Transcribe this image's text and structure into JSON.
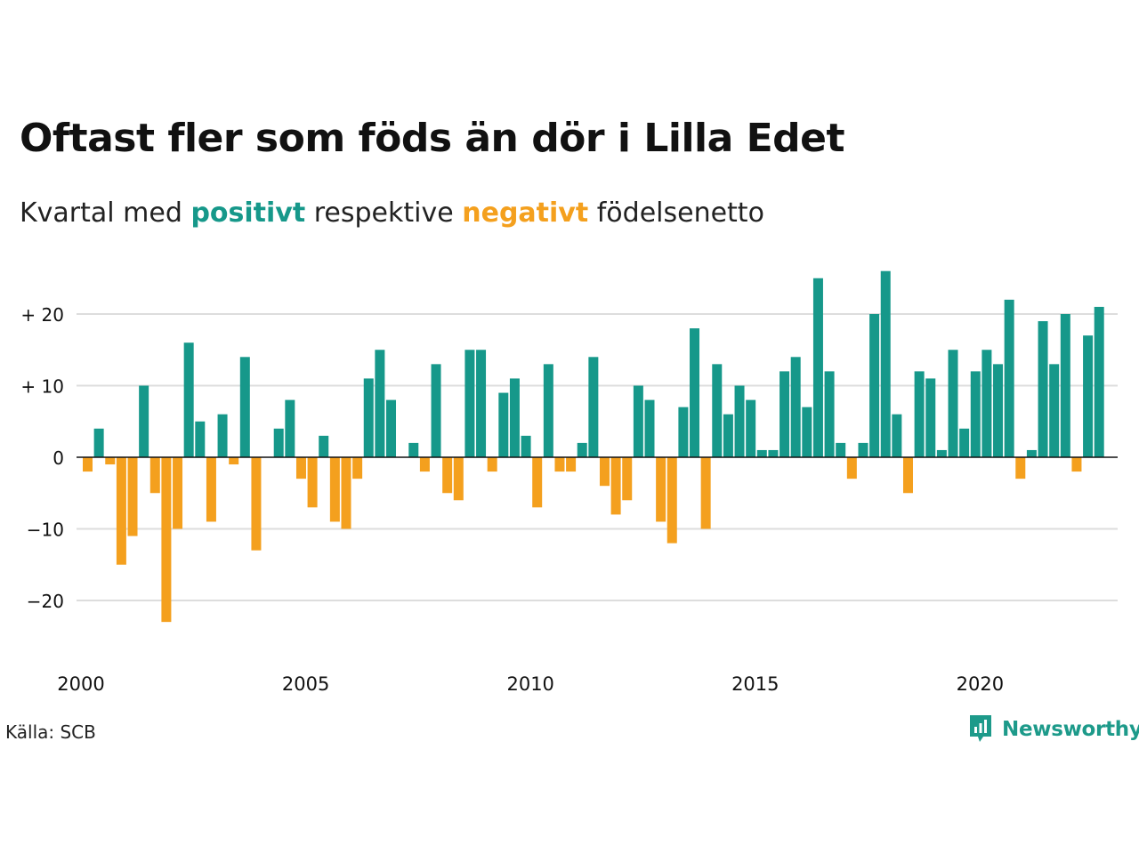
{
  "header": {
    "title": "Oftast fler som föds än dör i Lilla Edet",
    "subtitle_before": "Kvartal med",
    "subtitle_pos": "positivt",
    "subtitle_mid": "respektive",
    "subtitle_neg": "negativt",
    "subtitle_after": "födelsenetto"
  },
  "footer": {
    "source": "Källa: SCB",
    "brand": "Newsworthy"
  },
  "colors": {
    "positive": "#16988a",
    "negative": "#f4a01e",
    "grid": "#dddddd",
    "zero_line": "#111111"
  },
  "chart_data": {
    "type": "bar",
    "title": "Oftast fler som föds än dör i Lilla Edet",
    "subtitle": "Kvartal med positivt respektive negativt födelsenetto",
    "x_start_year": 2000,
    "x_ticks": [
      "2000",
      "2005",
      "2010",
      "2015",
      "2020"
    ],
    "y_ticks": [
      {
        "value": 20,
        "label": "+ 20"
      },
      {
        "value": 10,
        "label": "+ 10"
      },
      {
        "value": 0,
        "label": "0"
      },
      {
        "value": -10,
        "label": "−10"
      },
      {
        "value": -20,
        "label": "−20"
      }
    ],
    "ylim": [
      -27,
      30
    ],
    "grid": true,
    "values": [
      -2,
      4,
      -1,
      -15,
      -11,
      10,
      -5,
      -23,
      -10,
      16,
      5,
      -9,
      6,
      -1,
      14,
      -13,
      0,
      4,
      8,
      -3,
      -7,
      3,
      -9,
      -10,
      -3,
      11,
      15,
      8,
      0,
      2,
      -2,
      13,
      -5,
      -6,
      15,
      15,
      -2,
      9,
      11,
      3,
      -7,
      13,
      -2,
      -2,
      2,
      14,
      -4,
      -8,
      -6,
      10,
      8,
      -9,
      -12,
      7,
      18,
      -10,
      13,
      6,
      10,
      8,
      1,
      1,
      12,
      14,
      7,
      25,
      12,
      2,
      -3,
      2,
      20,
      26,
      6,
      -5,
      12,
      11,
      1,
      15,
      4,
      12,
      15,
      13,
      22,
      -3,
      1,
      19,
      13,
      20,
      -2,
      17,
      21
    ]
  }
}
